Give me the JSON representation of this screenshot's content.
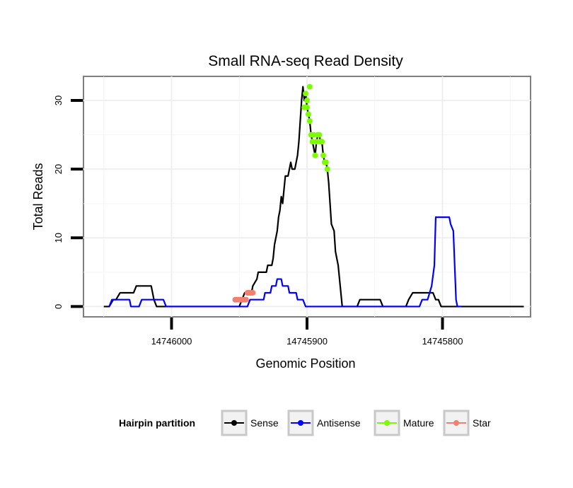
{
  "chart_data": {
    "type": "line",
    "title": "Small RNA-seq Read Density",
    "xlabel": "Genomic Position",
    "ylabel": "Total Reads",
    "x_reversed": true,
    "xlim": [
      14746065,
      14745735
    ],
    "ylim": [
      -1.5,
      33.5
    ],
    "x_ticks": [
      {
        "value": 14746000,
        "label": "14746000"
      },
      {
        "value": 14745900,
        "label": "14745900"
      },
      {
        "value": 14745800,
        "label": "14745800"
      }
    ],
    "y_ticks": [
      {
        "value": 0,
        "label": "0"
      },
      {
        "value": 10,
        "label": "10"
      },
      {
        "value": 20,
        "label": "20"
      },
      {
        "value": 30,
        "label": "30"
      }
    ],
    "legend": {
      "title": "Hairpin partition",
      "position": "bottom",
      "entries": [
        {
          "name": "Sense",
          "color": "#000000"
        },
        {
          "name": "Antisense",
          "color": "#0000ff"
        },
        {
          "name": "Mature",
          "color": "#7cfc00"
        },
        {
          "name": "Star",
          "color": "#f08070"
        }
      ]
    },
    "series": [
      {
        "name": "Sense",
        "color": "#000000",
        "style": "line",
        "points": [
          [
            14746050,
            0
          ],
          [
            14746046,
            0
          ],
          [
            14746043,
            1
          ],
          [
            14746041,
            1
          ],
          [
            14746038,
            2
          ],
          [
            14746028,
            2
          ],
          [
            14746026,
            3
          ],
          [
            14746015,
            3
          ],
          [
            14746013,
            1
          ],
          [
            14746011,
            0
          ],
          [
            14745950,
            0
          ],
          [
            14745948,
            1
          ],
          [
            14745946,
            2
          ],
          [
            14745941,
            2
          ],
          [
            14745940,
            3
          ],
          [
            14745937,
            4
          ],
          [
            14745936,
            5
          ],
          [
            14745930,
            5
          ],
          [
            14745929,
            6
          ],
          [
            14745926,
            6
          ],
          [
            14745925,
            7
          ],
          [
            14745924,
            9
          ],
          [
            14745923,
            10
          ],
          [
            14745922,
            11
          ],
          [
            14745921,
            13
          ],
          [
            14745920,
            14
          ],
          [
            14745919,
            16
          ],
          [
            14745918,
            15
          ],
          [
            14745917,
            17
          ],
          [
            14745916,
            19
          ],
          [
            14745914,
            19
          ],
          [
            14745913,
            20
          ],
          [
            14745912,
            21
          ],
          [
            14745911,
            20
          ],
          [
            14745909,
            20
          ],
          [
            14745908,
            21
          ],
          [
            14745907,
            22
          ],
          [
            14745906,
            24
          ],
          [
            14745905,
            27
          ],
          [
            14745904,
            30
          ],
          [
            14745903,
            32
          ],
          [
            14745902,
            30
          ],
          [
            14745901,
            31
          ],
          [
            14745900,
            29
          ],
          [
            14745899,
            28
          ],
          [
            14745898,
            27
          ],
          [
            14745897,
            25
          ],
          [
            14745896,
            24
          ],
          [
            14745895,
            23
          ],
          [
            14745894,
            22
          ],
          [
            14745893,
            24
          ],
          [
            14745892,
            25
          ],
          [
            14745891,
            25
          ],
          [
            14745890,
            24
          ],
          [
            14745889,
            24
          ],
          [
            14745888,
            22
          ],
          [
            14745887,
            21
          ],
          [
            14745886,
            21
          ],
          [
            14745885,
            20
          ],
          [
            14745884,
            18
          ],
          [
            14745883,
            15
          ],
          [
            14745882,
            12
          ],
          [
            14745880,
            11
          ],
          [
            14745879,
            8
          ],
          [
            14745878,
            7
          ],
          [
            14745877,
            6
          ],
          [
            14745876,
            4
          ],
          [
            14745875,
            2
          ],
          [
            14745874,
            0
          ],
          [
            14745863,
            0
          ],
          [
            14745861,
            1
          ],
          [
            14745846,
            1
          ],
          [
            14745844,
            0
          ],
          [
            14745827,
            0
          ],
          [
            14745825,
            1
          ],
          [
            14745822,
            2
          ],
          [
            14745807,
            2
          ],
          [
            14745805,
            1
          ],
          [
            14745803,
            1
          ],
          [
            14745801,
            0
          ],
          [
            14745740,
            0
          ]
        ]
      },
      {
        "name": "Antisense",
        "color": "#0000ff",
        "style": "line",
        "points": [
          [
            14746046,
            0
          ],
          [
            14746044,
            1
          ],
          [
            14746031,
            1
          ],
          [
            14746030,
            0
          ],
          [
            14746024,
            0
          ],
          [
            14746022,
            1
          ],
          [
            14746006,
            1
          ],
          [
            14746004,
            0
          ],
          [
            14745944,
            0
          ],
          [
            14745942,
            1
          ],
          [
            14745932,
            1
          ],
          [
            14745931,
            2
          ],
          [
            14745927,
            2
          ],
          [
            14745926,
            3
          ],
          [
            14745923,
            3
          ],
          [
            14745922,
            4
          ],
          [
            14745919,
            4
          ],
          [
            14745918,
            3
          ],
          [
            14745914,
            3
          ],
          [
            14745913,
            2
          ],
          [
            14745908,
            2
          ],
          [
            14745907,
            1
          ],
          [
            14745903,
            1
          ],
          [
            14745901,
            0
          ],
          [
            14745817,
            0
          ],
          [
            14745815,
            1
          ],
          [
            14745811,
            1
          ],
          [
            14745808,
            3
          ],
          [
            14745806,
            6
          ],
          [
            14745805,
            13
          ],
          [
            14745795,
            13
          ],
          [
            14745794,
            12
          ],
          [
            14745792,
            11
          ],
          [
            14745791,
            6
          ],
          [
            14745790,
            1
          ],
          [
            14745789,
            0
          ],
          [
            14745786,
            0
          ]
        ]
      },
      {
        "name": "Mature",
        "color": "#7cfc00",
        "style": "points",
        "points": [
          [
            14745902,
            29
          ],
          [
            14745901,
            31
          ],
          [
            14745900,
            29
          ],
          [
            14745899,
            28
          ],
          [
            14745898,
            27
          ],
          [
            14745898,
            32
          ],
          [
            14745897,
            25
          ],
          [
            14745896,
            24
          ],
          [
            14745895,
            25
          ],
          [
            14745894,
            22
          ],
          [
            14745893,
            24
          ],
          [
            14745892,
            25
          ],
          [
            14745891,
            25
          ],
          [
            14745890,
            24
          ],
          [
            14745889,
            24
          ],
          [
            14745888,
            22
          ],
          [
            14745887,
            21
          ],
          [
            14745886,
            21
          ],
          [
            14745885,
            20
          ],
          [
            14745900,
            30
          ]
        ]
      },
      {
        "name": "Star",
        "color": "#f08070",
        "style": "points",
        "points": [
          [
            14745953,
            1
          ],
          [
            14745952,
            1
          ],
          [
            14745951,
            1
          ],
          [
            14745950,
            1
          ],
          [
            14745949,
            1
          ],
          [
            14745948,
            1
          ],
          [
            14745947,
            1
          ],
          [
            14745946,
            1
          ],
          [
            14745945,
            1
          ],
          [
            14745944,
            2
          ],
          [
            14745943,
            2
          ],
          [
            14745942,
            2
          ],
          [
            14745941,
            2
          ],
          [
            14745940,
            2
          ]
        ]
      }
    ]
  }
}
